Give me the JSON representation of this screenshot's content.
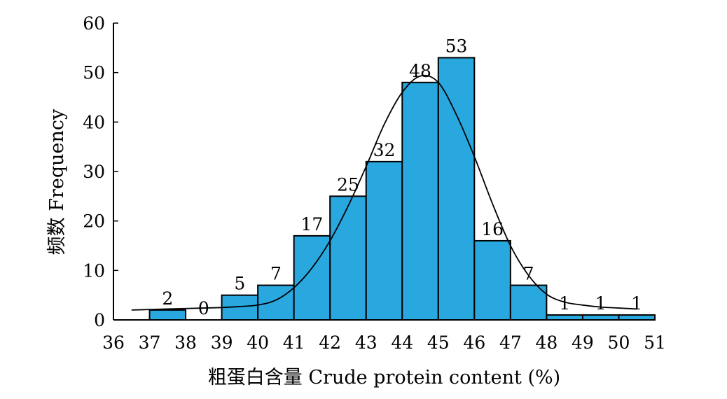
{
  "chart_data": {
    "type": "bar",
    "bin_edges": [
      36,
      37,
      38,
      39,
      40,
      41,
      42,
      43,
      44,
      45,
      46,
      47,
      48,
      49,
      50,
      51
    ],
    "categories": [
      "36-37",
      "37-38",
      "38-39",
      "39-40",
      "40-41",
      "41-42",
      "42-43",
      "43-44",
      "44-45",
      "45-46",
      "46-47",
      "47-48",
      "48-49",
      "49-50",
      "50-51"
    ],
    "series": [
      {
        "values": [
          null,
          2,
          0,
          5,
          7,
          17,
          25,
          32,
          48,
          53,
          16,
          7,
          1,
          1,
          1
        ],
        "data_labels": [
          "",
          "2",
          "0",
          "5",
          "7",
          "17",
          "25",
          "32",
          "48",
          "53",
          "16",
          "7",
          "1",
          "1",
          "1"
        ]
      }
    ],
    "fit_curve": {
      "type": "normal",
      "x": [
        36.5,
        37,
        37.5,
        38,
        38.5,
        39,
        39.5,
        40,
        40.5,
        41,
        41.5,
        42,
        42.5,
        43,
        43.5,
        44,
        44.5,
        45,
        45.5,
        46,
        46.5,
        47,
        47.5,
        48,
        48.5,
        49,
        49.5,
        50,
        50.5
      ],
      "y": [
        2.0,
        2.1,
        2.2,
        2.3,
        2.4,
        2.5,
        2.7,
        3.0,
        4.0,
        6.5,
        10.5,
        16.0,
        23.0,
        31.0,
        39.5,
        46.0,
        49.3,
        48.0,
        41.5,
        33.0,
        23.5,
        15.0,
        9.0,
        5.2,
        3.6,
        3.0,
        2.6,
        2.4,
        2.2
      ]
    },
    "xlabel": "粗蛋白含量 Crude protein content (%)",
    "ylabel": "频数 Frequency",
    "xlim": [
      36,
      51
    ],
    "ylim": [
      0,
      60
    ],
    "xticks": [
      "36",
      "37",
      "38",
      "39",
      "40",
      "41",
      "42",
      "43",
      "44",
      "45",
      "46",
      "47",
      "48",
      "49",
      "50",
      "51"
    ],
    "yticks": [
      "0",
      "10",
      "20",
      "30",
      "40",
      "50",
      "60"
    ],
    "grid": false,
    "colors": {
      "bar_fill": "#29a8e0",
      "bar_edge": "#000000",
      "curve": "#000000"
    }
  }
}
